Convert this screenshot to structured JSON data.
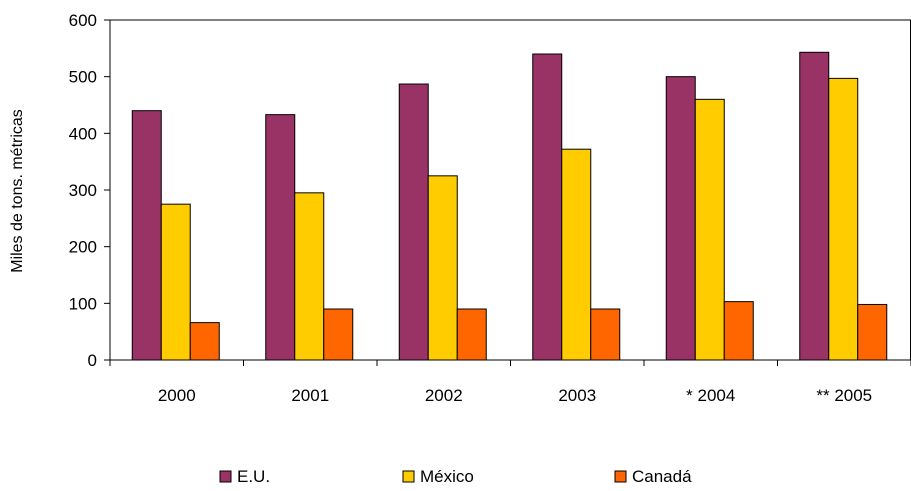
{
  "chart_data": {
    "type": "bar",
    "title": "",
    "xlabel": "",
    "ylabel": "Miles de tons. métricas",
    "ylim": [
      0,
      600
    ],
    "yticks": [
      0,
      100,
      200,
      300,
      400,
      500,
      600
    ],
    "grid": false,
    "legend_position": "bottom",
    "categories": [
      "2000",
      "2001",
      "2002",
      "2003",
      "* 2004",
      "** 2005"
    ],
    "series": [
      {
        "name": "E.U.",
        "color": "#993366",
        "values": [
          440,
          433,
          487,
          540,
          500,
          543
        ]
      },
      {
        "name": "México",
        "color": "#FFCC00",
        "values": [
          275,
          295,
          325,
          372,
          460,
          497
        ]
      },
      {
        "name": "Canadá",
        "color": "#FF6600",
        "values": [
          66,
          90,
          90,
          90,
          103,
          98
        ]
      }
    ]
  }
}
